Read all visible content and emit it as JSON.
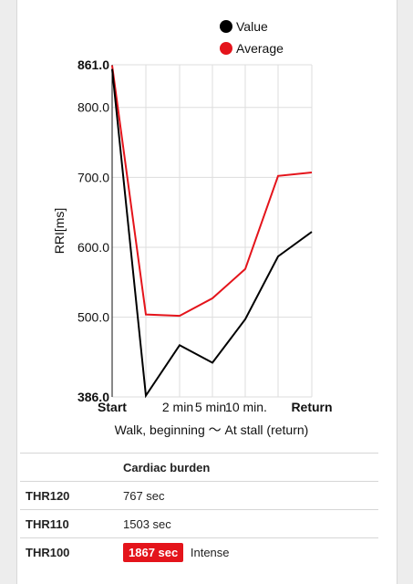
{
  "chart_data": {
    "type": "line",
    "categories": [
      "Start",
      "",
      "2 min",
      "5 min",
      "10 min.",
      "",
      "Return"
    ],
    "ylabel": "RRI[ms]",
    "xlabel": "Walk, beginning 〜 At stall (return)",
    "ylim": [
      386.0,
      861.0
    ],
    "yticks": [
      "861.0",
      "800.0",
      "700.0",
      "600.0",
      "500.0",
      "386.0"
    ],
    "yticks_bold": [
      "861.0",
      "386.0"
    ],
    "legend_position": "top",
    "series": [
      {
        "name": "Value",
        "color": "#000000",
        "values": [
          855,
          388,
          460,
          435,
          497,
          587,
          622
        ]
      },
      {
        "name": "Average",
        "color": "#e4141b",
        "values": [
          860,
          504,
          502,
          527,
          569,
          702,
          707
        ]
      }
    ]
  },
  "table": {
    "header": [
      "",
      "Cardiac burden"
    ],
    "rows": [
      {
        "label": "THR120",
        "value": "767 sec",
        "badge": "",
        "note": ""
      },
      {
        "label": "THR110",
        "value": "1503 sec",
        "badge": "",
        "note": ""
      },
      {
        "label": "THR100",
        "value": "",
        "badge": "1867 sec",
        "note": "Intense"
      }
    ]
  }
}
